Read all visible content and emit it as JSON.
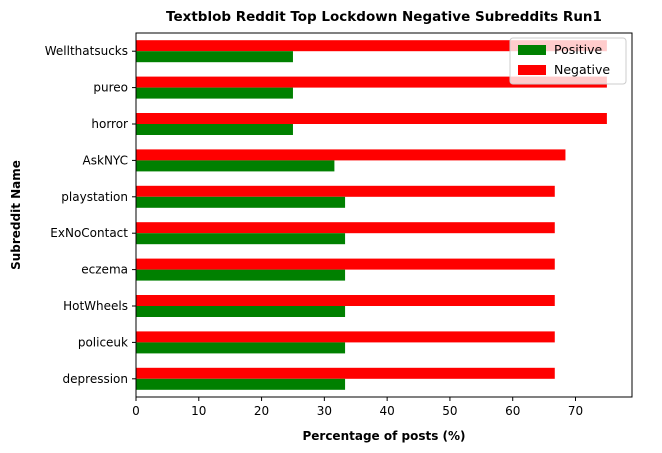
{
  "chart_data": {
    "type": "bar",
    "orientation": "horizontal",
    "title": "Textblob Reddit Top Lockdown Negative Subreddits Run1",
    "xlabel": "Percentage of posts (%)",
    "ylabel": "Subreddit Name",
    "xlim": [
      0,
      79
    ],
    "xticks": [
      0,
      10,
      20,
      30,
      40,
      50,
      60,
      70
    ],
    "categories": [
      "depression",
      "policeuk",
      "HotWheels",
      "eczema",
      "ExNoContact",
      "playstation",
      "AskNYC",
      "horror",
      "pureo",
      "Wellthatsucks"
    ],
    "series": [
      {
        "name": "Positive",
        "color": "#008000",
        "values": [
          33.3,
          33.3,
          33.3,
          33.3,
          33.3,
          33.3,
          31.6,
          25.0,
          25.0,
          25.0
        ]
      },
      {
        "name": "Negative",
        "color": "#ff0000",
        "values": [
          66.7,
          66.7,
          66.7,
          66.7,
          66.7,
          66.7,
          68.4,
          75.0,
          75.0,
          75.0
        ]
      }
    ],
    "legend_position": "top-right",
    "grid": false
  }
}
